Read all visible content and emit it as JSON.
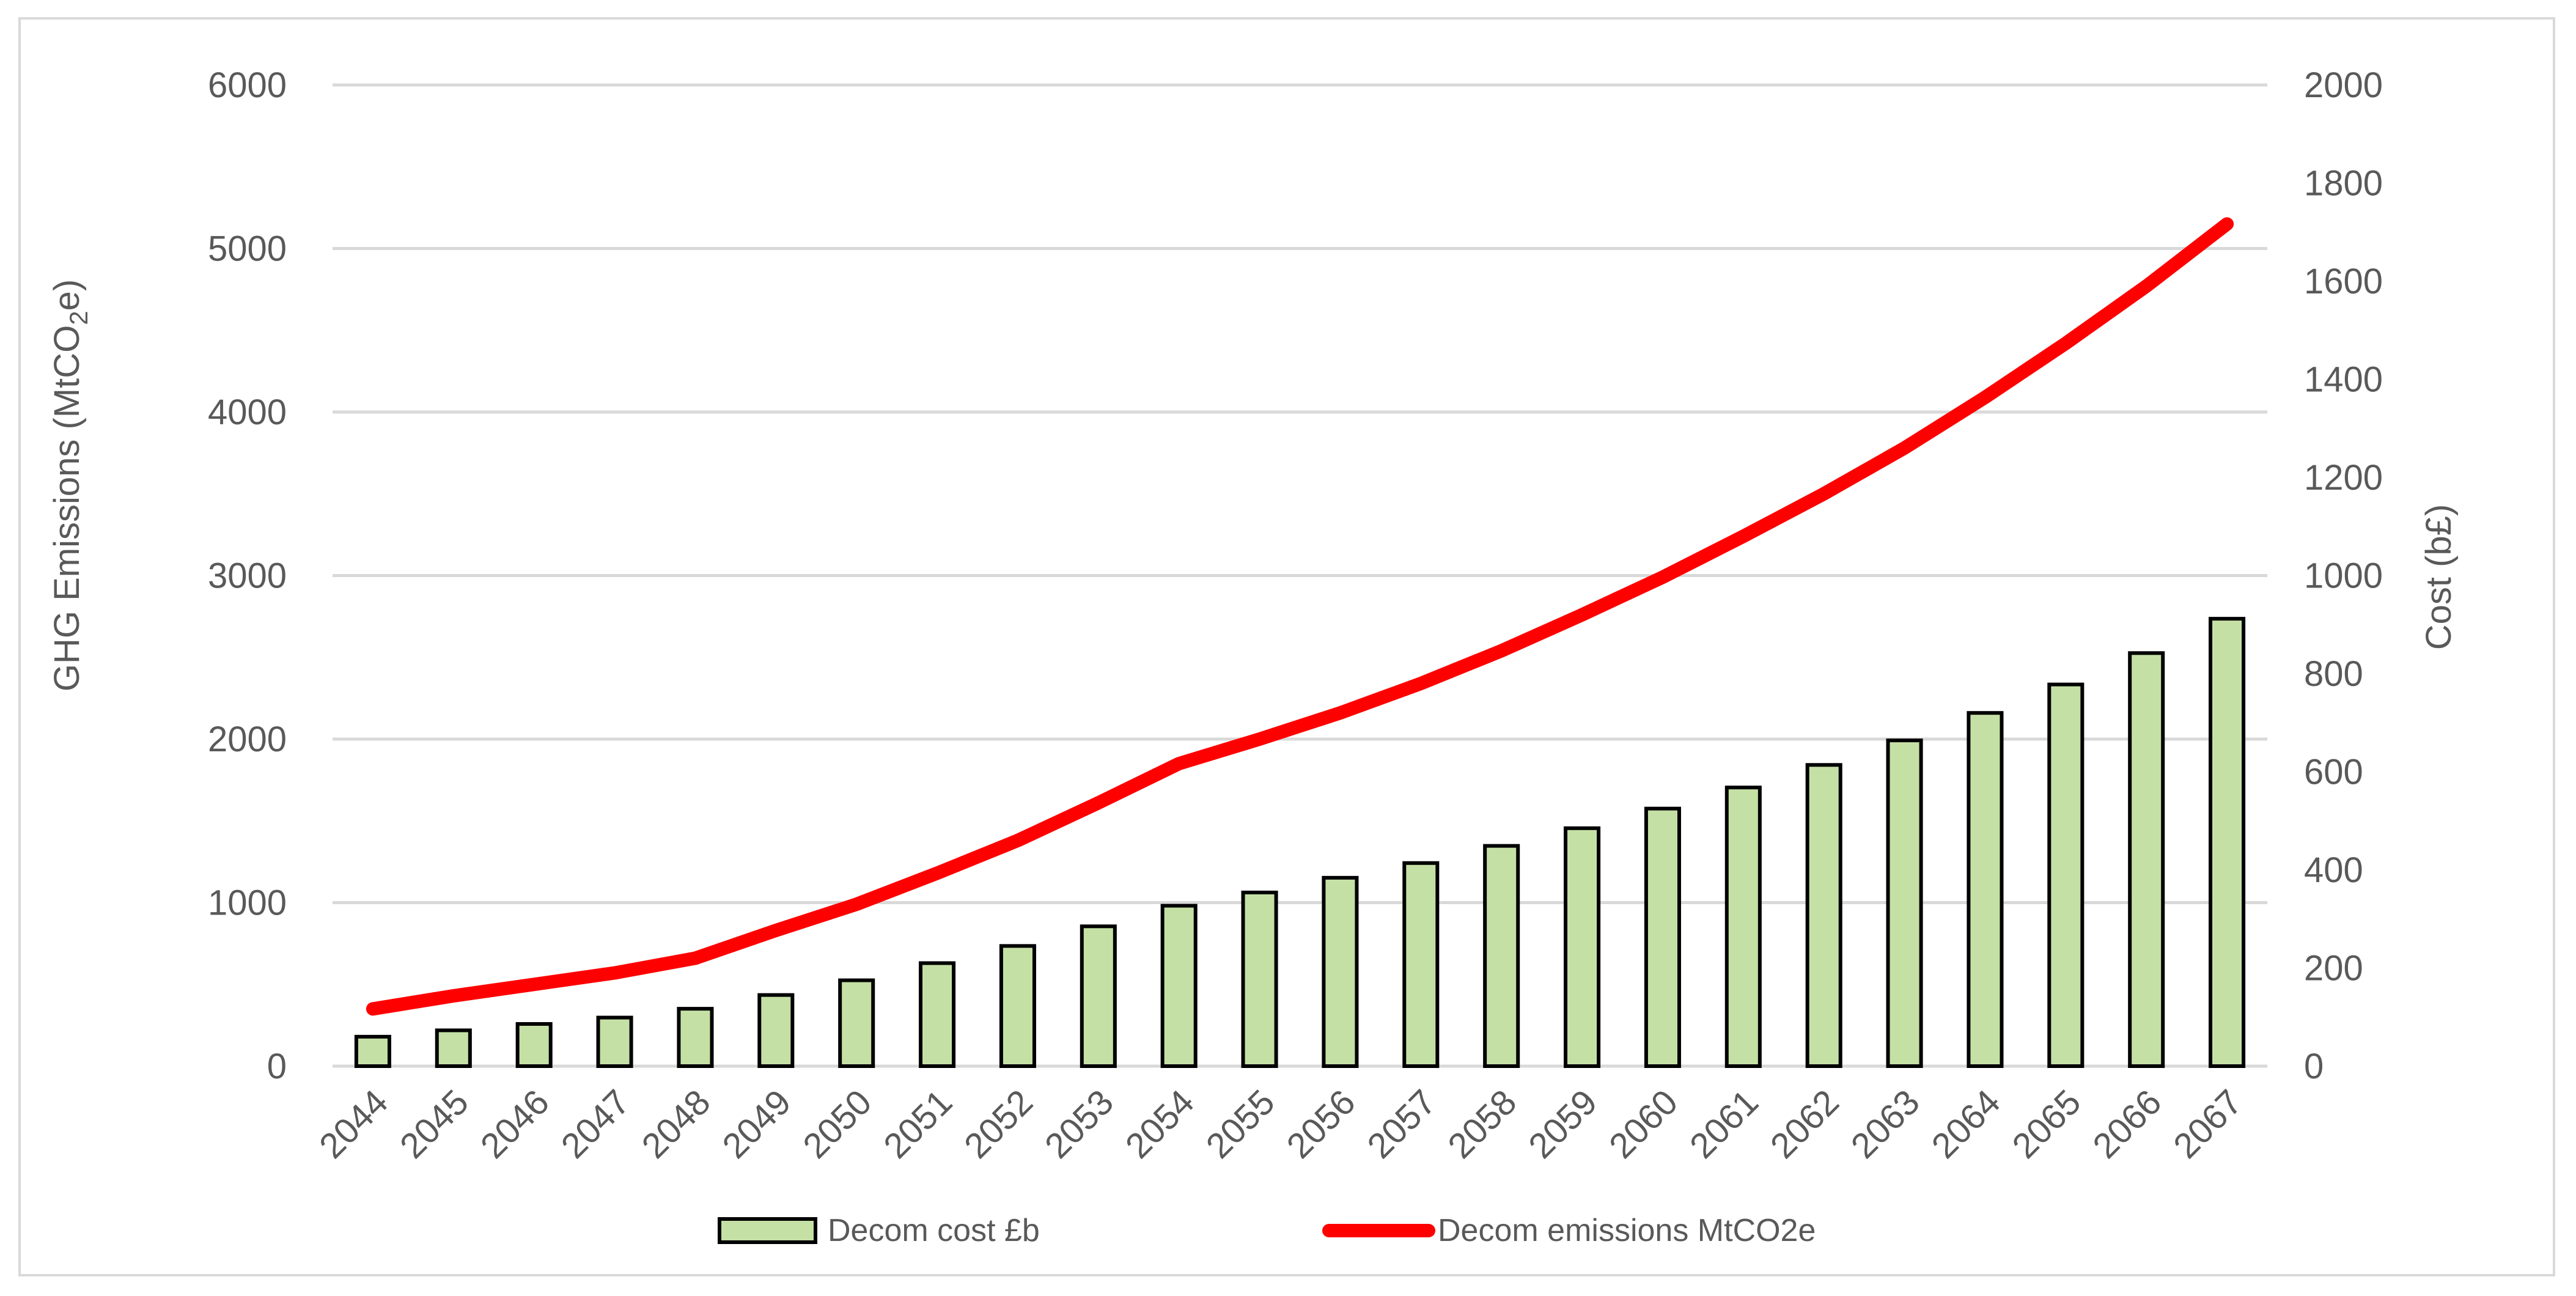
{
  "chart_data": {
    "type": "bar",
    "title": "",
    "categories": [
      "2044",
      "2045",
      "2046",
      "2047",
      "2048",
      "2049",
      "2050",
      "2051",
      "2052",
      "2053",
      "2054",
      "2055",
      "2056",
      "2057",
      "2058",
      "2059",
      "2060",
      "2061",
      "2062",
      "2063",
      "2064",
      "2065",
      "2066",
      "2067"
    ],
    "series": [
      {
        "name": "Decom cost £b",
        "type": "bar",
        "axis": "right",
        "color": "#c5e0a5",
        "values": [
          60,
          73,
          86,
          99,
          117,
          145,
          175,
          210,
          245,
          285,
          327,
          354,
          384,
          414,
          449,
          485,
          525,
          568,
          614,
          664,
          720,
          778,
          842,
          912
        ]
      },
      {
        "name": "Decom emissions MtCO2e",
        "type": "line",
        "axis": "left",
        "color": "#ff0000",
        "values": [
          350,
          430,
          500,
          570,
          660,
          830,
          990,
          1180,
          1380,
          1610,
          1850,
          2000,
          2160,
          2340,
          2540,
          2760,
          2990,
          3240,
          3500,
          3780,
          4090,
          4420,
          4770,
          5150
        ]
      }
    ],
    "left_axis": {
      "label_main": "GHG Emissions (MtCO",
      "label_sub": "2",
      "label_end": "e)",
      "ylim": [
        0,
        6000
      ],
      "ticks": [
        "0",
        "1000",
        "2000",
        "3000",
        "4000",
        "5000",
        "6000"
      ]
    },
    "right_axis": {
      "label": "Cost (b£)",
      "ylim": [
        0,
        2000
      ],
      "ticks": [
        "0",
        "200",
        "400",
        "600",
        "800",
        "1000",
        "1200",
        "1400",
        "1600",
        "1800",
        "2000"
      ]
    },
    "grid": true,
    "legend_position": "bottom"
  }
}
